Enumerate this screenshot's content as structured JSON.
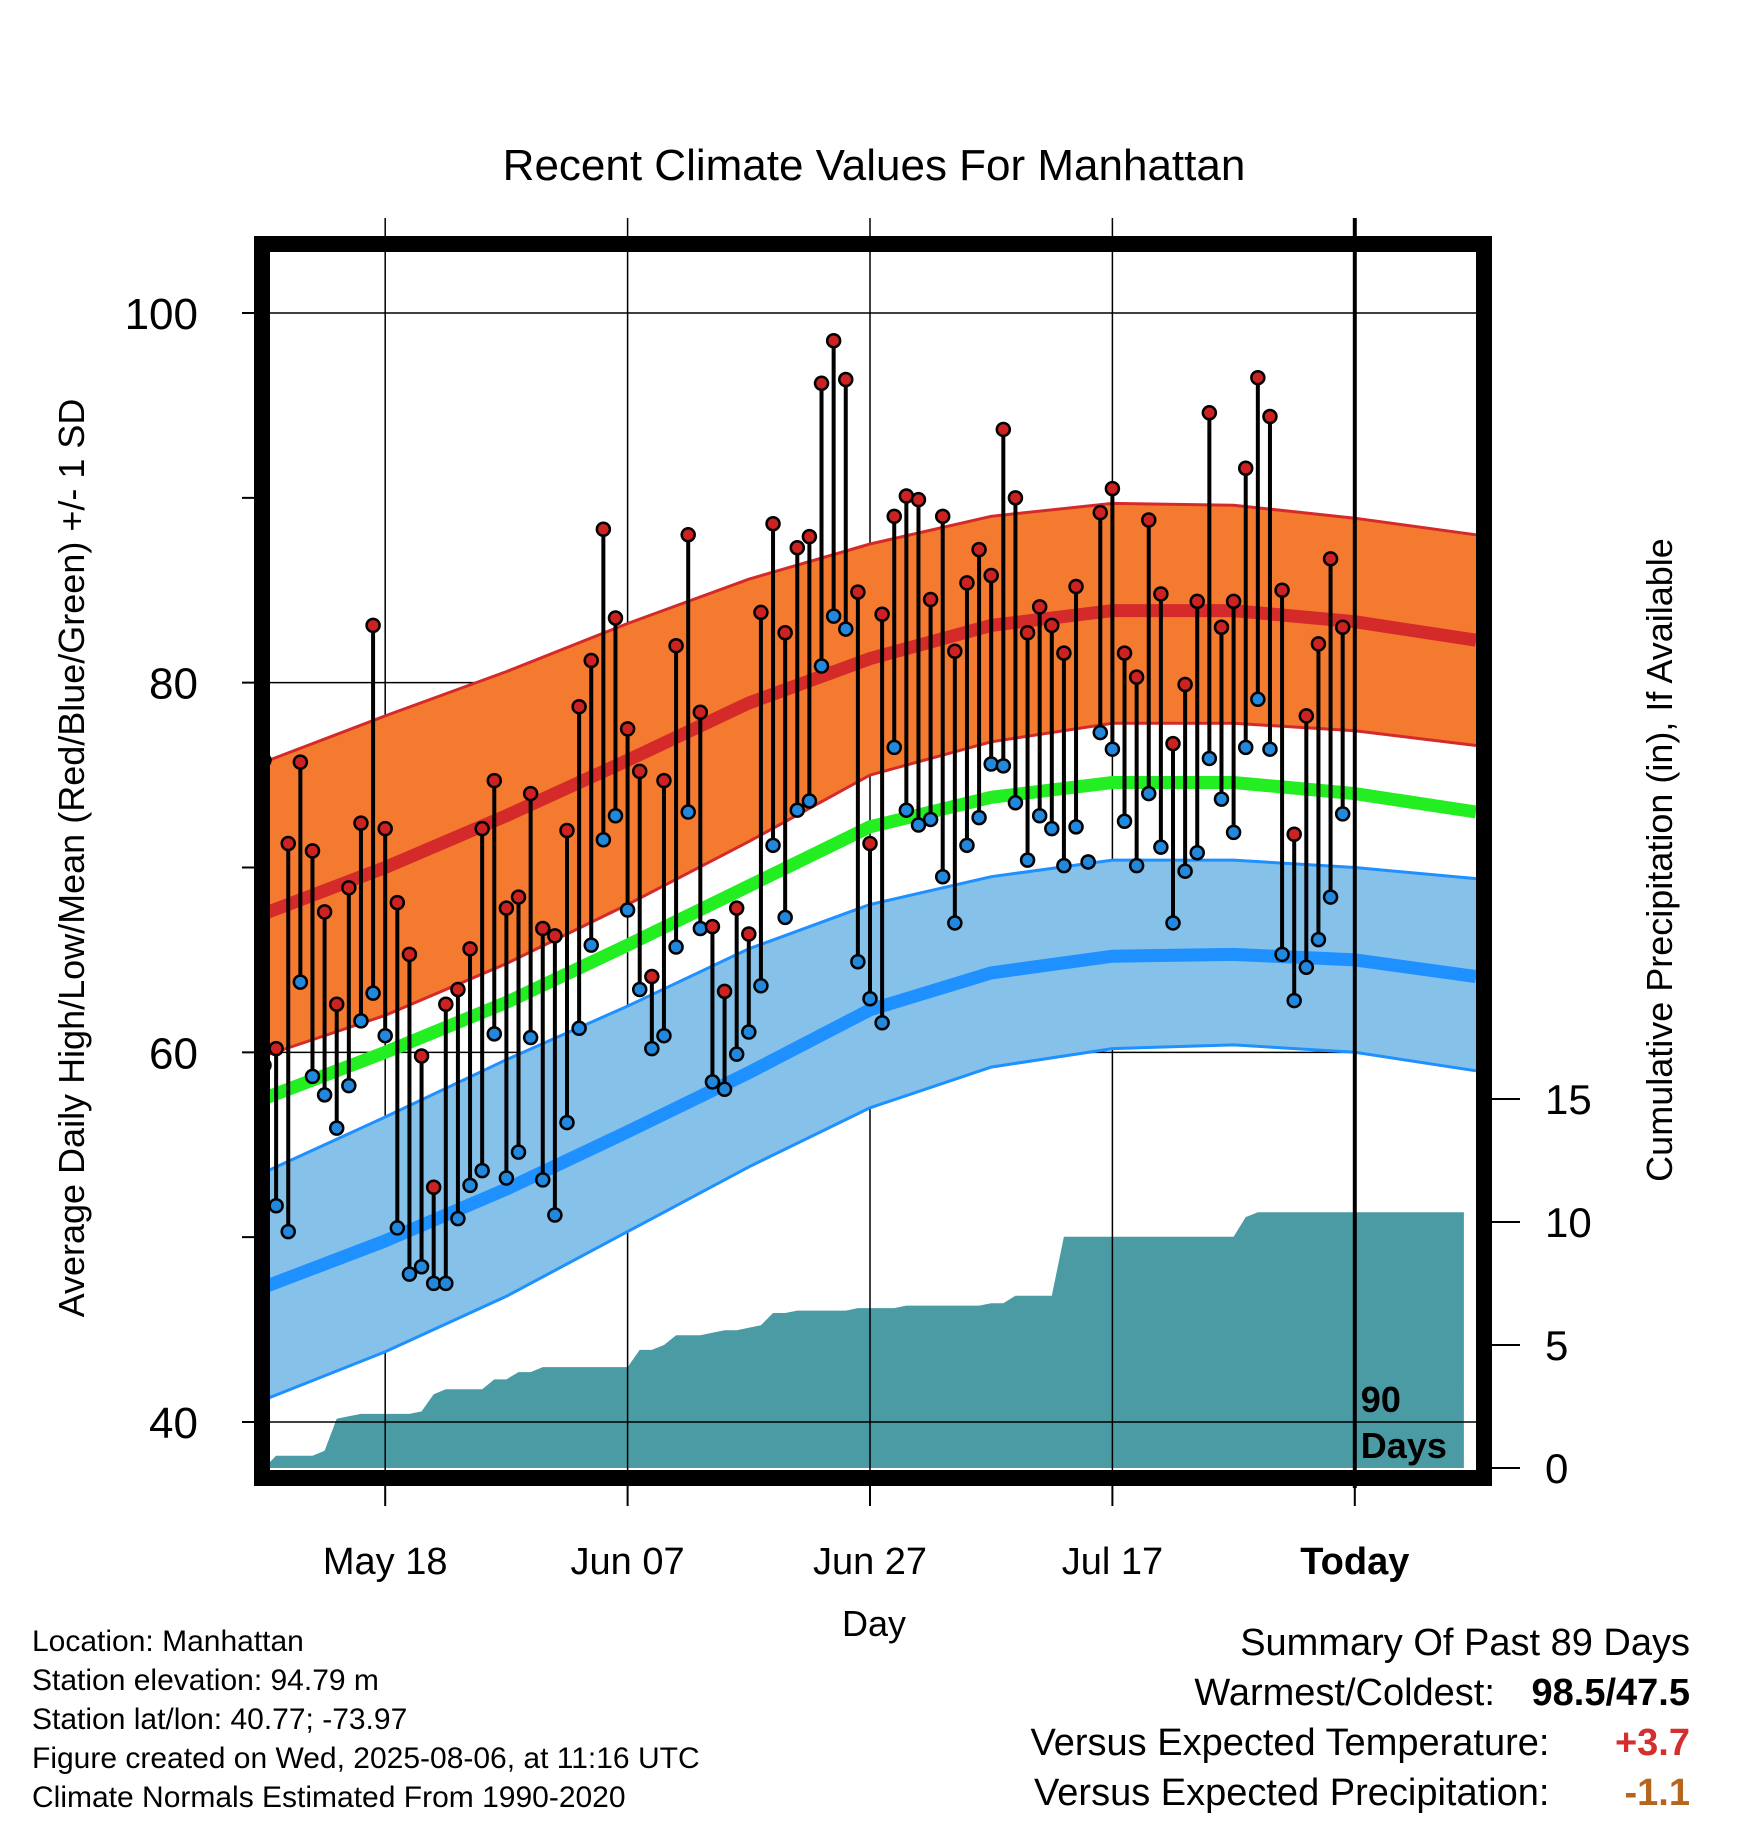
{
  "chart_data": {
    "type": "line",
    "title": "Recent Climate Values For Manhattan",
    "xlabel": "Day",
    "ylabel_left": "Average Daily High/Low/Mean (Red/Blue/Green) +/- 1 SD",
    "ylabel_right": "Cumulative Precipitation (in), If Available",
    "x_ticks": [
      "May 18",
      "Jun 07",
      "Jun 27",
      "Jul 17",
      "Today"
    ],
    "x_tick_days": [
      10,
      30,
      50,
      70,
      90
    ],
    "xlim": [
      0,
      100
    ],
    "ylim_left": [
      38,
      103
    ],
    "ylim_right": [
      0,
      50
    ],
    "y_ticks_left": [
      40,
      60,
      80,
      100
    ],
    "y_ticks_right": [
      0,
      5,
      10,
      15
    ],
    "today_annotation": "90\nDays",
    "normals": {
      "days": [
        0,
        10,
        20,
        30,
        40,
        50,
        60,
        70,
        80,
        90,
        100
      ],
      "high_mean": [
        67.5,
        70.0,
        72.8,
        75.8,
        78.9,
        81.3,
        83.1,
        83.9,
        83.9,
        83.3,
        82.3
      ],
      "high_upper": [
        75.7,
        78.2,
        80.6,
        83.2,
        85.6,
        87.5,
        89.0,
        89.7,
        89.6,
        88.9,
        88.0
      ],
      "high_lower": [
        59.8,
        62.0,
        64.8,
        68.0,
        71.4,
        75.0,
        76.8,
        77.8,
        77.8,
        77.4,
        76.6
      ],
      "mean": [
        57.5,
        60.0,
        62.7,
        65.8,
        69.0,
        72.2,
        73.8,
        74.6,
        74.6,
        74.0,
        73.0
      ],
      "low_mean": [
        47.3,
        49.8,
        52.6,
        55.7,
        58.9,
        62.3,
        64.3,
        65.2,
        65.3,
        65.0,
        64.1
      ],
      "low_upper": [
        53.5,
        56.5,
        59.6,
        62.5,
        65.6,
        68.0,
        69.5,
        70.4,
        70.4,
        70.0,
        69.4
      ],
      "low_lower": [
        41.2,
        43.8,
        46.8,
        50.3,
        53.8,
        57.0,
        59.2,
        60.2,
        60.4,
        60.0,
        59.0
      ]
    },
    "observed": {
      "days": [
        0,
        1,
        2,
        3,
        4,
        5,
        6,
        7,
        8,
        9,
        10,
        11,
        12,
        13,
        14,
        15,
        16,
        17,
        18,
        19,
        20,
        21,
        22,
        23,
        24,
        25,
        26,
        27,
        28,
        29,
        30,
        31,
        32,
        33,
        34,
        35,
        36,
        37,
        38,
        39,
        40,
        41,
        42,
        43,
        44,
        45,
        46,
        47,
        48,
        49,
        50,
        51,
        52,
        53,
        54,
        55,
        56,
        57,
        58,
        59,
        60,
        61,
        62,
        63,
        64,
        65,
        66,
        67,
        68,
        69,
        70,
        71,
        72,
        73,
        74,
        75,
        76,
        77,
        78,
        79,
        80,
        81,
        82,
        83,
        84,
        85,
        86,
        87,
        88,
        89
      ],
      "high": [
        75.8,
        60.2,
        71.3,
        75.7,
        70.9,
        67.6,
        62.6,
        68.9,
        72.4,
        83.1,
        72.1,
        68.1,
        65.3,
        59.8,
        52.7,
        62.6,
        63.4,
        65.6,
        72.1,
        74.7,
        67.8,
        68.4,
        74.0,
        66.7,
        66.3,
        72.0,
        78.7,
        81.2,
        88.3,
        83.5,
        77.5,
        75.2,
        64.1,
        74.7,
        82.0,
        88.0,
        78.4,
        66.8,
        63.3,
        67.8,
        66.4,
        83.8,
        88.6,
        82.7,
        87.3,
        87.9,
        96.2,
        98.5,
        96.4,
        84.9,
        71.3,
        83.7,
        89.0,
        90.1,
        89.9,
        84.5,
        89.0,
        81.7,
        85.4,
        87.2,
        85.8,
        93.7,
        90.0,
        82.7,
        84.1,
        83.1,
        81.6,
        85.2,
        70.3,
        89.2,
        90.5,
        81.6,
        80.3,
        88.8,
        84.8,
        76.7,
        79.9,
        84.4,
        94.6,
        83.0,
        84.4,
        91.6,
        96.5,
        94.4,
        85.0,
        71.8,
        78.2,
        82.1,
        86.7,
        83.0
      ],
      "low": [
        59.3,
        51.7,
        50.3,
        63.8,
        58.7,
        57.7,
        55.9,
        58.2,
        61.7,
        63.2,
        60.9,
        50.5,
        48.0,
        48.4,
        47.5,
        47.5,
        51.0,
        52.8,
        53.6,
        61.0,
        53.2,
        54.6,
        60.8,
        53.1,
        51.2,
        56.2,
        61.3,
        65.8,
        71.5,
        72.8,
        67.7,
        63.4,
        60.2,
        60.9,
        65.7,
        73.0,
        66.7,
        58.4,
        58.0,
        59.9,
        61.1,
        63.6,
        71.2,
        67.3,
        73.1,
        73.6,
        80.9,
        83.6,
        82.9,
        64.9,
        62.9,
        61.6,
        76.5,
        73.1,
        72.3,
        72.6,
        69.5,
        67.0,
        71.2,
        72.7,
        75.6,
        75.5,
        73.5,
        70.4,
        72.8,
        72.1,
        70.1,
        72.2,
        70.3,
        77.3,
        76.4,
        72.5,
        70.1,
        74.0,
        71.1,
        67.0,
        69.8,
        70.8,
        75.9,
        73.7,
        71.9,
        76.5,
        79.1,
        76.4,
        65.3,
        62.8,
        64.6,
        66.1,
        68.4,
        72.9
      ]
    },
    "precipitation": {
      "days": [
        0,
        1,
        4,
        5,
        6,
        7,
        8,
        9,
        10,
        11,
        12,
        13,
        14,
        15,
        16,
        17,
        18,
        19,
        20,
        21,
        22,
        23,
        24,
        25,
        26,
        27,
        28,
        29,
        30,
        31,
        32,
        33,
        34,
        35,
        36,
        37,
        38,
        39,
        40,
        41,
        42,
        43,
        44,
        45,
        46,
        47,
        48,
        49,
        50,
        51,
        52,
        53,
        54,
        55,
        56,
        57,
        58,
        59,
        60,
        61,
        62,
        63,
        64,
        65,
        66,
        67,
        68,
        69,
        70,
        71,
        72,
        73,
        74,
        75,
        76,
        77,
        78,
        79,
        80,
        81,
        82,
        83,
        84,
        85,
        86,
        87,
        88,
        89,
        90,
        99
      ],
      "cumulative": [
        0,
        0.5,
        0.5,
        0.7,
        2.0,
        2.1,
        2.2,
        2.2,
        2.2,
        2.2,
        2.2,
        2.3,
        3.0,
        3.2,
        3.2,
        3.2,
        3.2,
        3.6,
        3.6,
        3.9,
        3.9,
        4.1,
        4.1,
        4.1,
        4.1,
        4.1,
        4.1,
        4.1,
        4.1,
        4.8,
        4.8,
        5.0,
        5.4,
        5.4,
        5.4,
        5.5,
        5.6,
        5.6,
        5.7,
        5.8,
        6.3,
        6.3,
        6.4,
        6.4,
        6.4,
        6.4,
        6.4,
        6.5,
        6.5,
        6.5,
        6.5,
        6.6,
        6.6,
        6.6,
        6.6,
        6.6,
        6.6,
        6.6,
        6.7,
        6.7,
        7.0,
        7.0,
        7.0,
        7.0,
        9.4,
        9.4,
        9.4,
        9.4,
        9.4,
        9.4,
        9.4,
        9.4,
        9.4,
        9.4,
        9.4,
        9.4,
        9.4,
        9.4,
        9.4,
        10.2,
        10.4,
        10.4,
        10.4,
        10.4,
        10.4,
        10.4,
        10.4,
        10.4,
        10.4,
        10.4
      ]
    },
    "colors": {
      "high_band": "#f47a30",
      "high_line": "#d42a2a",
      "mean_line": "#22ee22",
      "low_band": "#85c1e9",
      "low_line": "#1e90ff",
      "precip": "#4a9ba4",
      "high_marker": "#cc2222",
      "low_marker": "#2288dd"
    },
    "grid": true
  },
  "footer": {
    "location": "Location: Manhattan",
    "elevation": "Station elevation: 94.79 m",
    "latlon": "Station lat/lon: 40.77; -73.97",
    "created": "Figure created on Wed, 2025-08-06, at 11:16 UTC",
    "normals": "Climate Normals Estimated From 1990-2020"
  },
  "summary": {
    "heading": "Summary Of Past 89 Days",
    "warmest_label": "Warmest/Coldest:",
    "warmest": "98.5",
    "coldest": "47.5",
    "temp_label": "Versus Expected Temperature:",
    "temp_value": "+3.7",
    "temp_color": "#d32f2f",
    "precip_label": "Versus Expected Precipitation:",
    "precip_value": "-1.1",
    "precip_color": "#b5651d"
  }
}
